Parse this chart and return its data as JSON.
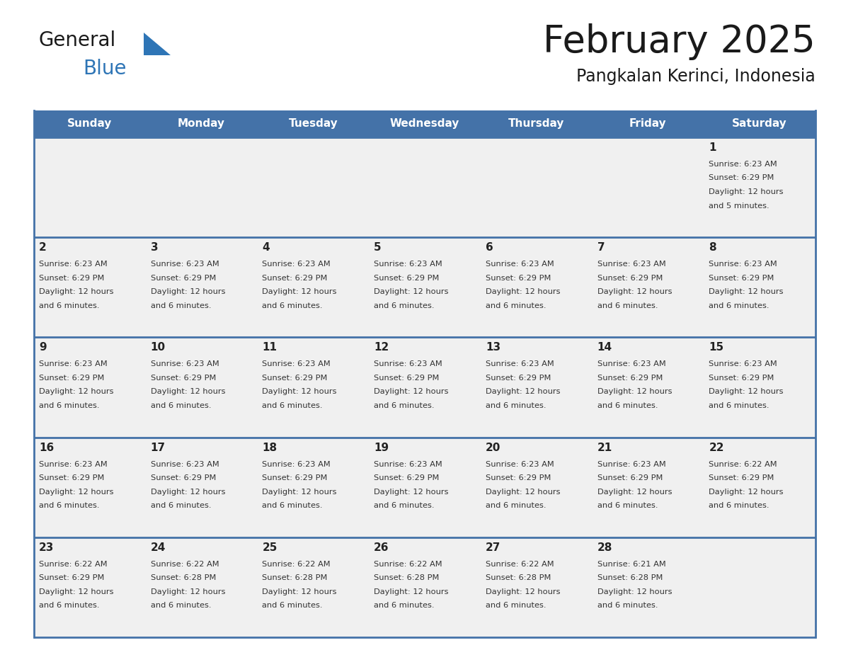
{
  "title": "February 2025",
  "subtitle": "Pangkalan Kerinci, Indonesia",
  "days_of_week": [
    "Sunday",
    "Monday",
    "Tuesday",
    "Wednesday",
    "Thursday",
    "Friday",
    "Saturday"
  ],
  "header_bg": "#4472a8",
  "header_text_color": "#ffffff",
  "row_bg": "#f0f0f0",
  "cell_text_color": "#333333",
  "day_num_color": "#222222",
  "border_color": "#4472a8",
  "logo_black": "#1a1a1a",
  "logo_blue": "#2e75b6",
  "calendar_data": [
    [
      null,
      null,
      null,
      null,
      null,
      null,
      {
        "day": 1,
        "sunrise": "6:23 AM",
        "sunset": "6:29 PM",
        "daylight_hours": 12,
        "daylight_minutes": 5
      }
    ],
    [
      {
        "day": 2,
        "sunrise": "6:23 AM",
        "sunset": "6:29 PM",
        "daylight_hours": 12,
        "daylight_minutes": 6
      },
      {
        "day": 3,
        "sunrise": "6:23 AM",
        "sunset": "6:29 PM",
        "daylight_hours": 12,
        "daylight_minutes": 6
      },
      {
        "day": 4,
        "sunrise": "6:23 AM",
        "sunset": "6:29 PM",
        "daylight_hours": 12,
        "daylight_minutes": 6
      },
      {
        "day": 5,
        "sunrise": "6:23 AM",
        "sunset": "6:29 PM",
        "daylight_hours": 12,
        "daylight_minutes": 6
      },
      {
        "day": 6,
        "sunrise": "6:23 AM",
        "sunset": "6:29 PM",
        "daylight_hours": 12,
        "daylight_minutes": 6
      },
      {
        "day": 7,
        "sunrise": "6:23 AM",
        "sunset": "6:29 PM",
        "daylight_hours": 12,
        "daylight_minutes": 6
      },
      {
        "day": 8,
        "sunrise": "6:23 AM",
        "sunset": "6:29 PM",
        "daylight_hours": 12,
        "daylight_minutes": 6
      }
    ],
    [
      {
        "day": 9,
        "sunrise": "6:23 AM",
        "sunset": "6:29 PM",
        "daylight_hours": 12,
        "daylight_minutes": 6
      },
      {
        "day": 10,
        "sunrise": "6:23 AM",
        "sunset": "6:29 PM",
        "daylight_hours": 12,
        "daylight_minutes": 6
      },
      {
        "day": 11,
        "sunrise": "6:23 AM",
        "sunset": "6:29 PM",
        "daylight_hours": 12,
        "daylight_minutes": 6
      },
      {
        "day": 12,
        "sunrise": "6:23 AM",
        "sunset": "6:29 PM",
        "daylight_hours": 12,
        "daylight_minutes": 6
      },
      {
        "day": 13,
        "sunrise": "6:23 AM",
        "sunset": "6:29 PM",
        "daylight_hours": 12,
        "daylight_minutes": 6
      },
      {
        "day": 14,
        "sunrise": "6:23 AM",
        "sunset": "6:29 PM",
        "daylight_hours": 12,
        "daylight_minutes": 6
      },
      {
        "day": 15,
        "sunrise": "6:23 AM",
        "sunset": "6:29 PM",
        "daylight_hours": 12,
        "daylight_minutes": 6
      }
    ],
    [
      {
        "day": 16,
        "sunrise": "6:23 AM",
        "sunset": "6:29 PM",
        "daylight_hours": 12,
        "daylight_minutes": 6
      },
      {
        "day": 17,
        "sunrise": "6:23 AM",
        "sunset": "6:29 PM",
        "daylight_hours": 12,
        "daylight_minutes": 6
      },
      {
        "day": 18,
        "sunrise": "6:23 AM",
        "sunset": "6:29 PM",
        "daylight_hours": 12,
        "daylight_minutes": 6
      },
      {
        "day": 19,
        "sunrise": "6:23 AM",
        "sunset": "6:29 PM",
        "daylight_hours": 12,
        "daylight_minutes": 6
      },
      {
        "day": 20,
        "sunrise": "6:23 AM",
        "sunset": "6:29 PM",
        "daylight_hours": 12,
        "daylight_minutes": 6
      },
      {
        "day": 21,
        "sunrise": "6:23 AM",
        "sunset": "6:29 PM",
        "daylight_hours": 12,
        "daylight_minutes": 6
      },
      {
        "day": 22,
        "sunrise": "6:22 AM",
        "sunset": "6:29 PM",
        "daylight_hours": 12,
        "daylight_minutes": 6
      }
    ],
    [
      {
        "day": 23,
        "sunrise": "6:22 AM",
        "sunset": "6:29 PM",
        "daylight_hours": 12,
        "daylight_minutes": 6
      },
      {
        "day": 24,
        "sunrise": "6:22 AM",
        "sunset": "6:28 PM",
        "daylight_hours": 12,
        "daylight_minutes": 6
      },
      {
        "day": 25,
        "sunrise": "6:22 AM",
        "sunset": "6:28 PM",
        "daylight_hours": 12,
        "daylight_minutes": 6
      },
      {
        "day": 26,
        "sunrise": "6:22 AM",
        "sunset": "6:28 PM",
        "daylight_hours": 12,
        "daylight_minutes": 6
      },
      {
        "day": 27,
        "sunrise": "6:22 AM",
        "sunset": "6:28 PM",
        "daylight_hours": 12,
        "daylight_minutes": 6
      },
      {
        "day": 28,
        "sunrise": "6:21 AM",
        "sunset": "6:28 PM",
        "daylight_hours": 12,
        "daylight_minutes": 6
      },
      null
    ]
  ],
  "num_rows": 5,
  "num_cols": 7
}
